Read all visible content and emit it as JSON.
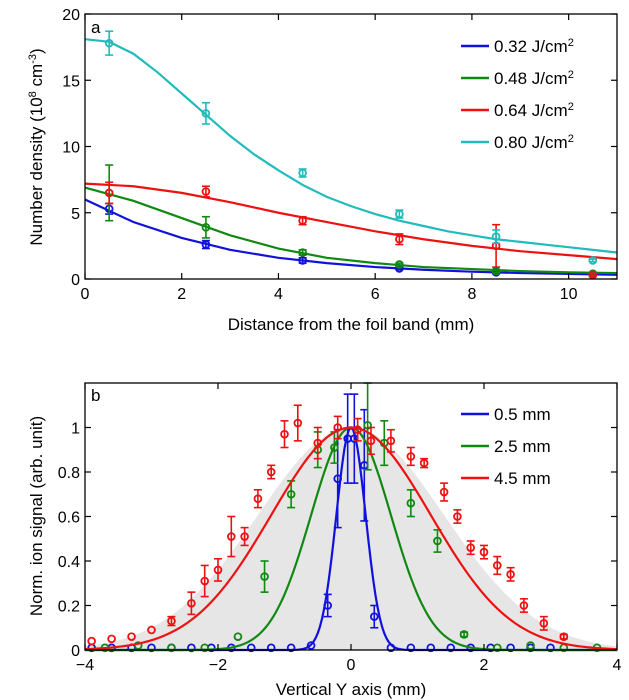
{
  "chart_data": [
    {
      "type": "scatter",
      "panel_label": "a",
      "xlabel": "Distance from the foil band (mm)",
      "ylabel_main": "Number density (10",
      "ylabel_sup1": "8",
      "ylabel_mid": " cm",
      "ylabel_sup2": "-3",
      "ylabel_end": ")",
      "xlim": [
        0,
        11
      ],
      "ylim": [
        0,
        20
      ],
      "xticks": [
        0,
        2,
        4,
        6,
        8,
        10
      ],
      "yticks": [
        0,
        5,
        10,
        15,
        20
      ],
      "xtick_labels": [
        "0",
        "2",
        "4",
        "6",
        "8",
        "10"
      ],
      "ytick_labels": [
        "0",
        "5",
        "10",
        "15",
        "20"
      ],
      "legend_position": "top-right",
      "series": [
        {
          "label_main": "0.32 J/cm",
          "label_sup": "2",
          "color": "#1111dd",
          "x": [
            0.5,
            2.5,
            4.5,
            6.5,
            8.5,
            10.5
          ],
          "y": [
            5.3,
            2.6,
            1.4,
            0.8,
            0.5,
            0.3
          ],
          "err": [
            0.4,
            0.3,
            0.2,
            0.1,
            0.1,
            0.1
          ],
          "fit_x": [
            0,
            1,
            2,
            3,
            4,
            5,
            6,
            7,
            8,
            9,
            10,
            11
          ],
          "fit_y": [
            6.0,
            4.3,
            3.1,
            2.2,
            1.6,
            1.2,
            0.9,
            0.7,
            0.55,
            0.45,
            0.38,
            0.32
          ]
        },
        {
          "label_main": "0.48 J/cm",
          "label_sup": "2",
          "color": "#118811",
          "x": [
            0.5,
            2.5,
            4.5,
            6.5,
            8.5,
            10.5
          ],
          "y": [
            6.5,
            3.9,
            2.0,
            1.1,
            0.6,
            0.4
          ],
          "err": [
            2.1,
            0.8,
            0.2,
            0.1,
            0.1,
            0.1
          ],
          "fit_x": [
            0,
            1,
            2,
            3,
            4,
            5,
            6,
            7,
            8,
            9,
            10,
            11
          ],
          "fit_y": [
            6.9,
            5.9,
            4.6,
            3.3,
            2.3,
            1.6,
            1.2,
            0.9,
            0.75,
            0.6,
            0.5,
            0.45
          ]
        },
        {
          "label_main": "0.64 J/cm",
          "label_sup": "2",
          "color": "#ee1111",
          "x": [
            0.5,
            2.5,
            4.5,
            6.5,
            8.5,
            10.5
          ],
          "y": [
            6.5,
            6.6,
            4.4,
            3.0,
            2.5,
            0.3
          ],
          "err": [
            0.8,
            0.4,
            0.3,
            0.4,
            1.6,
            0.1
          ],
          "fit_x": [
            0,
            1,
            2,
            3,
            4,
            5,
            6,
            7,
            8,
            9,
            10,
            11
          ],
          "fit_y": [
            7.2,
            7.0,
            6.5,
            5.8,
            5.0,
            4.3,
            3.6,
            3.0,
            2.5,
            2.1,
            1.8,
            1.5
          ]
        },
        {
          "label_main": "0.80 J/cm",
          "label_sup": "2",
          "color": "#22bbbb",
          "x": [
            0.5,
            2.5,
            4.5,
            6.5,
            8.5,
            10.5
          ],
          "y": [
            17.8,
            12.5,
            8.0,
            4.9,
            3.2,
            1.4
          ],
          "err": [
            0.9,
            0.8,
            0.3,
            0.3,
            0.5,
            0.1
          ],
          "fit_x": [
            0,
            0.5,
            1,
            1.5,
            2,
            2.5,
            3,
            3.5,
            4,
            4.5,
            5,
            5.5,
            6,
            6.5,
            7,
            7.5,
            8,
            8.5,
            9,
            9.5,
            10,
            10.5,
            11
          ],
          "fit_y": [
            18.1,
            17.9,
            17.0,
            15.6,
            14.0,
            12.4,
            10.8,
            9.4,
            8.2,
            7.1,
            6.2,
            5.5,
            4.9,
            4.4,
            4.0,
            3.6,
            3.3,
            3.0,
            2.8,
            2.6,
            2.4,
            2.2,
            2.0
          ]
        }
      ]
    },
    {
      "type": "scatter",
      "panel_label": "b",
      "xlabel": "Vertical Y axis (mm)",
      "ylabel": "Norm. ion signal (arb. unit)",
      "xlim": [
        -4,
        4
      ],
      "ylim": [
        0,
        1.2
      ],
      "xticks": [
        -4,
        -2,
        0,
        2,
        4
      ],
      "yticks": [
        0,
        0.2,
        0.4,
        0.6,
        0.8,
        1
      ],
      "xtick_labels": [
        "−4",
        "−2",
        "0",
        "2",
        "4"
      ],
      "ytick_labels": [
        "0",
        "0.2",
        "0.4",
        "0.6",
        "0.8",
        "1"
      ],
      "legend_position": "top-right",
      "shaded_fill": "#e6e6e6",
      "shaded_sigma": 1.4,
      "series": [
        {
          "label": "0.5 mm",
          "color": "#1111dd",
          "x": [
            -3.9,
            -3.6,
            -3.3,
            -3.0,
            -2.7,
            -2.4,
            -2.1,
            -1.8,
            -1.5,
            -1.2,
            -0.9,
            -0.6,
            -0.35,
            -0.2,
            -0.05,
            0.05,
            0.2,
            0.35,
            0.6,
            0.9,
            1.2,
            1.5,
            1.8,
            2.1,
            2.4,
            2.7,
            3.0
          ],
          "y": [
            0.01,
            0.01,
            0.01,
            0.01,
            0.01,
            0.01,
            0.01,
            0.01,
            0.01,
            0.01,
            0.01,
            0.02,
            0.2,
            0.77,
            0.95,
            0.95,
            0.83,
            0.15,
            0.01,
            0.01,
            0.01,
            0.01,
            0.01,
            0.01,
            0.01,
            0.01,
            0.01
          ],
          "err": [
            0,
            0,
            0,
            0,
            0,
            0,
            0,
            0,
            0,
            0,
            0,
            0,
            0.05,
            0.22,
            0.2,
            0.2,
            0.25,
            0.05,
            0,
            0,
            0,
            0,
            0,
            0,
            0,
            0,
            0
          ],
          "fit_sigma": 0.22
        },
        {
          "label": "2.5 mm",
          "color": "#118811",
          "x": [
            -3.7,
            -3.2,
            -2.7,
            -2.2,
            -1.7,
            -1.3,
            -0.9,
            -0.5,
            -0.25,
            0.25,
            0.5,
            0.9,
            1.3,
            1.7,
            2.2,
            2.7,
            3.2,
            3.7
          ],
          "y": [
            0.01,
            0.02,
            0.01,
            0.01,
            0.06,
            0.33,
            0.7,
            0.9,
            0.91,
            1.01,
            0.93,
            0.66,
            0.49,
            0.07,
            0.01,
            0.02,
            0.01,
            0.01
          ],
          "err": [
            0,
            0,
            0,
            0,
            0,
            0.07,
            0.06,
            0.08,
            0.07,
            0.2,
            0.1,
            0.06,
            0.05,
            0.01,
            0,
            0,
            0,
            0
          ],
          "fit_sigma": 0.6
        },
        {
          "label": "4.5 mm",
          "color": "#ee1111",
          "x": [
            -3.9,
            -3.6,
            -3.3,
            -3.0,
            -2.7,
            -2.4,
            -2.2,
            -2.0,
            -1.8,
            -1.6,
            -1.4,
            -1.2,
            -1.0,
            -0.8,
            -0.5,
            -0.2,
            0.1,
            0.3,
            0.6,
            0.9,
            1.1,
            1.4,
            1.6,
            1.8,
            2.0,
            2.2,
            2.4,
            2.6,
            2.9,
            3.2
          ],
          "y": [
            0.04,
            0.05,
            0.06,
            0.09,
            0.13,
            0.21,
            0.31,
            0.36,
            0.51,
            0.51,
            0.68,
            0.8,
            0.97,
            1.02,
            0.93,
            1.0,
            0.99,
            0.94,
            0.94,
            0.87,
            0.84,
            0.71,
            0.6,
            0.46,
            0.44,
            0.38,
            0.34,
            0.2,
            0.12,
            0.06
          ],
          "err": [
            0,
            0,
            0,
            0,
            0.02,
            0.05,
            0.07,
            0.05,
            0.09,
            0.04,
            0.04,
            0.03,
            0.06,
            0.08,
            0.07,
            0.05,
            0.05,
            0.06,
            0.05,
            0.04,
            0.02,
            0.04,
            0.03,
            0.03,
            0.03,
            0.04,
            0.03,
            0.03,
            0.03,
            0.01
          ],
          "fit_sigma": 1.2
        }
      ]
    }
  ]
}
